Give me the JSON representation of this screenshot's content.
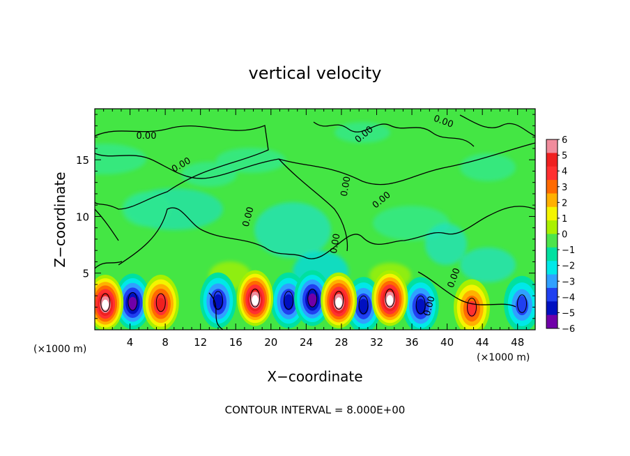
{
  "chart_data": {
    "type": "heatmap",
    "title": "vertical velocity",
    "xlabel": "X−coordinate",
    "ylabel": "Z−coordinate",
    "x_unit_left": "(×1000 m)",
    "x_unit_right": "(×1000 m)",
    "xlim": [
      0,
      50
    ],
    "ylim": [
      0,
      19.5
    ],
    "x_ticks": [
      4,
      8,
      12,
      16,
      20,
      24,
      28,
      32,
      36,
      40,
      44,
      48
    ],
    "y_ticks": [
      5,
      10,
      15
    ],
    "colorbar": {
      "levels": [
        6,
        5,
        4,
        3,
        2,
        1,
        0,
        -1,
        -2,
        -3,
        -4,
        -5,
        -6
      ],
      "labels": [
        "6",
        "5",
        "4",
        "3",
        "2",
        "1",
        "0",
        "−1",
        "−2",
        "−3",
        "−4",
        "−5",
        "−6"
      ],
      "colors": [
        "#f08c9c",
        "#ef2020",
        "#ff3030",
        "#ff6a00",
        "#ffb000",
        "#f4f400",
        "#aaf000",
        "#4ce44c",
        "#00e0a0",
        "#00e8e8",
        "#30a0ff",
        "#2040f0",
        "#0010c0",
        "#7000a8"
      ]
    },
    "contour_label": "0.00",
    "updrafts": [
      {
        "x": 1.2,
        "z": 2.4,
        "w": 7.5
      },
      {
        "x": 7.5,
        "z": 2.4,
        "w": 6.0
      },
      {
        "x": 18.2,
        "z": 2.8,
        "w": 8.0
      },
      {
        "x": 27.7,
        "z": 2.6,
        "w": 7.5
      },
      {
        "x": 33.5,
        "z": 2.8,
        "w": 8.0
      },
      {
        "x": 42.8,
        "z": 2.0,
        "w": 4.5
      }
    ],
    "downdrafts": [
      {
        "x": 4.3,
        "z": 2.5,
        "w": -6.5
      },
      {
        "x": 14.0,
        "z": 2.6,
        "w": -5.5
      },
      {
        "x": 22.0,
        "z": 2.6,
        "w": -6.0
      },
      {
        "x": 24.7,
        "z": 2.8,
        "w": -6.5
      },
      {
        "x": 30.5,
        "z": 2.2,
        "w": -5.5
      },
      {
        "x": 37.0,
        "z": 2.2,
        "w": -5.5
      },
      {
        "x": 48.5,
        "z": 2.3,
        "w": -4.0
      }
    ]
  },
  "footer": {
    "contour_interval": "CONTOUR INTERVAL = 8.000E+00"
  }
}
